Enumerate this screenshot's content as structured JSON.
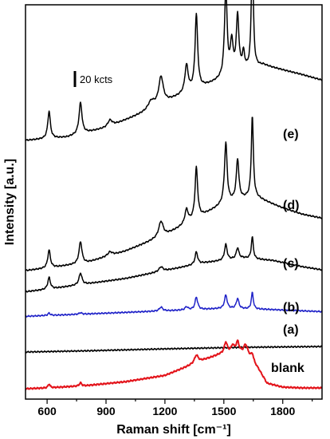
{
  "chart_data": {
    "type": "line",
    "xlabel": "Raman shift [cm⁻¹]",
    "ylabel": "Intensity [a.u.]",
    "xlim": [
      490,
      2000
    ],
    "xticks": [
      600,
      900,
      1200,
      1500,
      1800
    ],
    "y_ticks_shown": false,
    "grid": false,
    "legend": "none",
    "scale_bar": {
      "label": "20 kcts",
      "value": 20
    },
    "series": [
      {
        "name": "(e)",
        "color": "#000000",
        "baseline": [
          [
            490,
            96
          ],
          [
            700,
            100
          ],
          [
            900,
            112
          ],
          [
            1100,
            132
          ],
          [
            1250,
            150
          ],
          [
            1400,
            165
          ],
          [
            1550,
            180
          ],
          [
            1700,
            192
          ],
          [
            1800,
            186
          ],
          [
            1900,
            180
          ],
          [
            2000,
            173
          ]
        ],
        "peaks": [
          [
            610,
            35,
            8
          ],
          [
            770,
            40,
            9
          ],
          [
            920,
            8,
            14
          ],
          [
            1130,
            10,
            20
          ],
          [
            1180,
            35,
            14
          ],
          [
            1310,
            35,
            10
          ],
          [
            1360,
            95,
            8
          ],
          [
            1510,
            110,
            8
          ],
          [
            1540,
            40,
            8
          ],
          [
            1570,
            72,
            8
          ],
          [
            1600,
            22,
            7
          ],
          [
            1645,
            150,
            6
          ]
        ]
      },
      {
        "name": "(d)",
        "color": "#000000",
        "baseline": [
          [
            490,
            50
          ],
          [
            600,
            53
          ],
          [
            800,
            60
          ],
          [
            1000,
            75
          ],
          [
            1200,
            95
          ],
          [
            1350,
            115
          ],
          [
            1500,
            135
          ],
          [
            1650,
            145
          ],
          [
            1800,
            130
          ],
          [
            1900,
            122
          ],
          [
            2000,
            117
          ]
        ],
        "peaks": [
          [
            610,
            23,
            8
          ],
          [
            770,
            28,
            9
          ],
          [
            920,
            5,
            14
          ],
          [
            1180,
            20,
            14
          ],
          [
            1310,
            18,
            10
          ],
          [
            1360,
            65,
            8
          ],
          [
            1510,
            77,
            8
          ],
          [
            1570,
            52,
            8
          ],
          [
            1645,
            103,
            6
          ]
        ]
      },
      {
        "name": "(c)",
        "color": "#000000",
        "baseline": [
          [
            490,
            25
          ],
          [
            600,
            28
          ],
          [
            800,
            35
          ],
          [
            1000,
            42
          ],
          [
            1200,
            52
          ],
          [
            1400,
            62
          ],
          [
            1600,
            68
          ],
          [
            1750,
            65
          ],
          [
            1900,
            57
          ],
          [
            2000,
            53
          ]
        ],
        "peaks": [
          [
            610,
            15,
            8
          ],
          [
            770,
            15,
            9
          ],
          [
            1180,
            6,
            12
          ],
          [
            1360,
            16,
            8
          ],
          [
            1510,
            20,
            8
          ],
          [
            1570,
            14,
            8
          ],
          [
            1645,
            28,
            6
          ]
        ]
      },
      {
        "name": "(b)",
        "color": "#1f22c8",
        "baseline": [
          [
            490,
            15
          ],
          [
            700,
            17
          ],
          [
            1000,
            20
          ],
          [
            1300,
            23
          ],
          [
            1500,
            25
          ],
          [
            1700,
            24
          ],
          [
            2000,
            21
          ]
        ],
        "peaks": [
          [
            610,
            3,
            7
          ],
          [
            770,
            2,
            8
          ],
          [
            1180,
            5,
            10
          ],
          [
            1310,
            4,
            9
          ],
          [
            1360,
            16,
            8
          ],
          [
            1510,
            17,
            8
          ],
          [
            1570,
            13,
            8
          ],
          [
            1645,
            21,
            6
          ]
        ]
      },
      {
        "name": "(a)",
        "color": "#000000",
        "baseline": [
          [
            490,
            0
          ],
          [
            800,
            1.5
          ],
          [
            1200,
            4
          ],
          [
            1600,
            6
          ],
          [
            2000,
            7
          ]
        ],
        "peaks": []
      },
      {
        "name": "blank",
        "color": "#e3141b",
        "baseline": [
          [
            490,
            1
          ],
          [
            600,
            2
          ],
          [
            800,
            5
          ],
          [
            1000,
            10
          ],
          [
            1200,
            18
          ],
          [
            1300,
            28
          ],
          [
            1400,
            38
          ],
          [
            1480,
            45
          ],
          [
            1550,
            48
          ],
          [
            1620,
            47
          ],
          [
            1680,
            25
          ],
          [
            1720,
            8
          ],
          [
            1800,
            3
          ],
          [
            1900,
            2
          ],
          [
            2000,
            2
          ]
        ],
        "peaks": [
          [
            610,
            5,
            6
          ],
          [
            770,
            4,
            7
          ],
          [
            1360,
            10,
            12
          ],
          [
            1510,
            14,
            9
          ],
          [
            1545,
            8,
            9
          ],
          [
            1570,
            13,
            9
          ],
          [
            1610,
            10,
            9
          ],
          [
            1645,
            8,
            7
          ]
        ]
      }
    ]
  }
}
